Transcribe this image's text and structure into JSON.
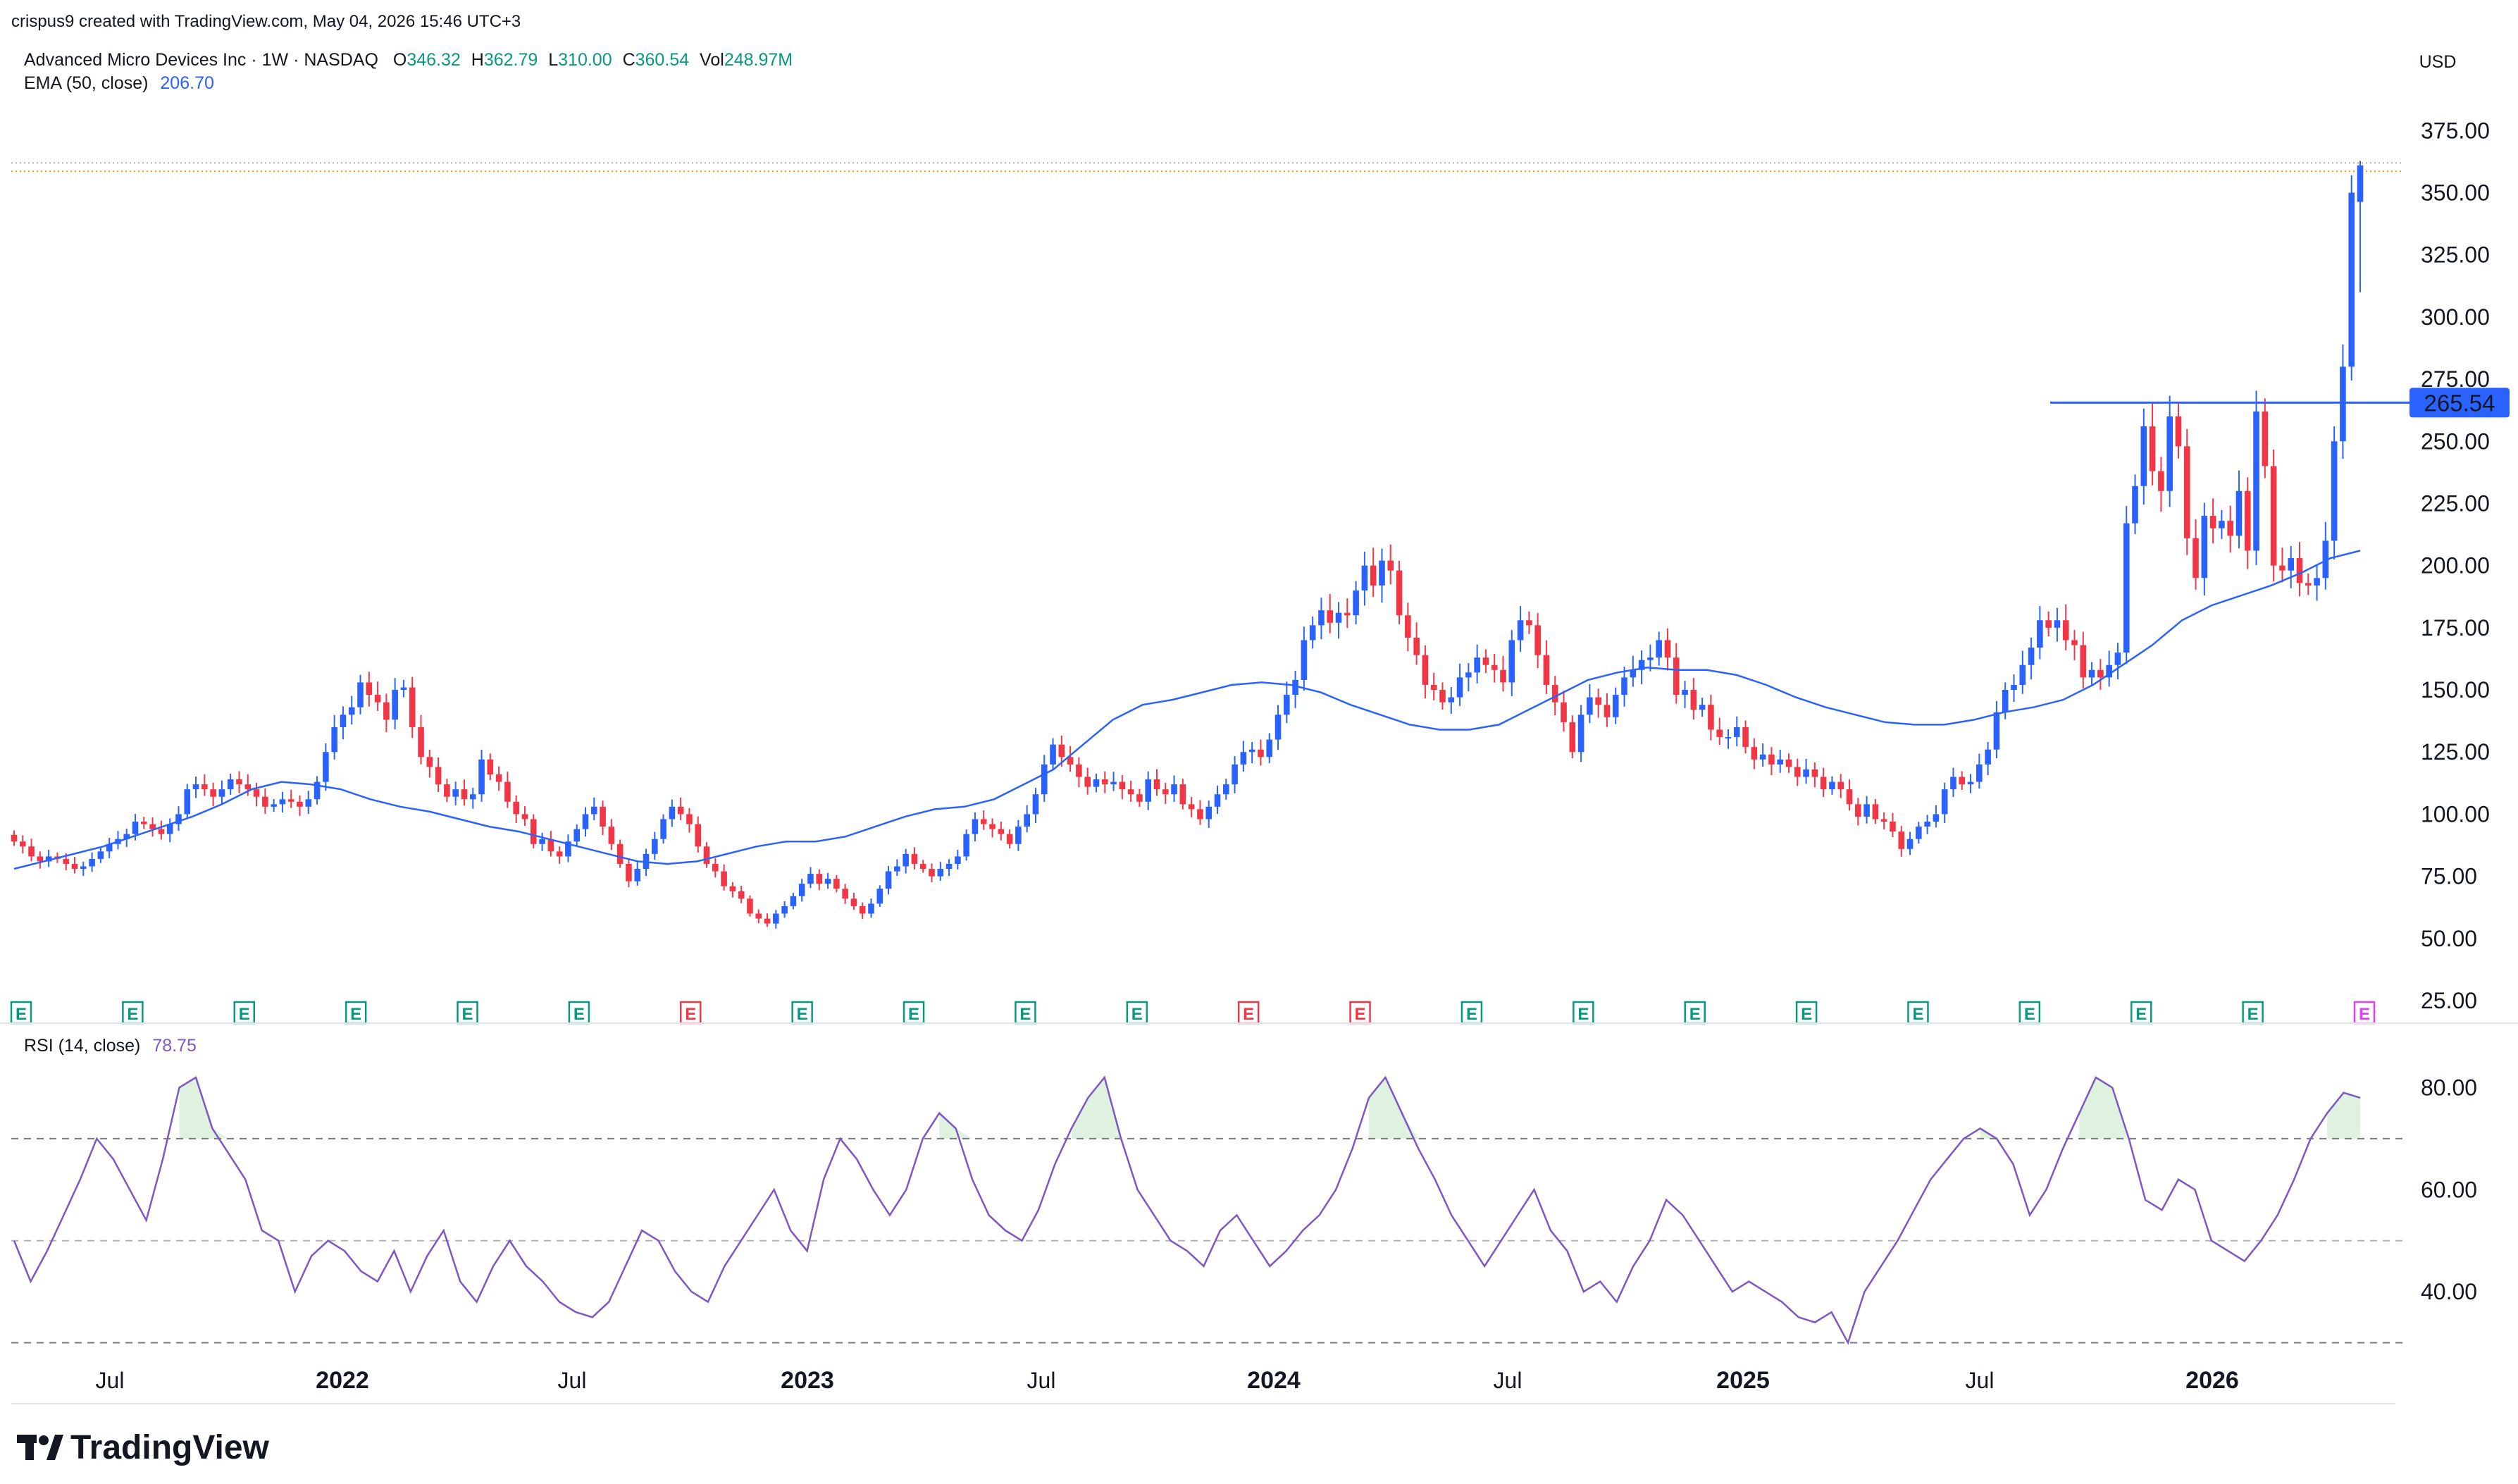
{
  "header": {
    "attribution": "crispus9 created with TradingView.com, May 04, 2026 15:46 UTC+3",
    "currency": "USD"
  },
  "legend": {
    "symbol": "Advanced Micro Devices Inc · 1W · NASDAQ",
    "open_label": "O",
    "open": "346.32",
    "high_label": "H",
    "high": "362.79",
    "low_label": "L",
    "low": "310.00",
    "close_label": "C",
    "close": "360.54",
    "vol_label": "Vol",
    "vol": "248.97M",
    "ema_label": "EMA (50, close)",
    "ema_value": "206.70",
    "rsi_label": "RSI (14, close)",
    "rsi_value": "78.75"
  },
  "price_axis": {
    "ticks": [
      "375.00",
      "350.00",
      "325.00",
      "300.00",
      "275.00",
      "250.00",
      "225.00",
      "200.00",
      "175.00",
      "150.00",
      "125.00",
      "100.00",
      "75.00",
      "50.00",
      "25.00"
    ],
    "marker": "265.54"
  },
  "rsi_axis": {
    "ticks": [
      "80.00",
      "60.00",
      "40.00"
    ]
  },
  "time_axis": {
    "labels": [
      {
        "text": "Jul",
        "bold": false
      },
      {
        "text": "2022",
        "bold": true
      },
      {
        "text": "Jul",
        "bold": false
      },
      {
        "text": "2023",
        "bold": true
      },
      {
        "text": "Jul",
        "bold": false
      },
      {
        "text": "2024",
        "bold": true
      },
      {
        "text": "Jul",
        "bold": false
      },
      {
        "text": "2025",
        "bold": true
      },
      {
        "text": "Jul",
        "bold": false
      },
      {
        "text": "2026",
        "bold": true
      }
    ]
  },
  "earnings_markers": [
    {
      "label": "E",
      "color": "#089981"
    },
    {
      "label": "E",
      "color": "#089981"
    },
    {
      "label": "E",
      "color": "#089981"
    },
    {
      "label": "E",
      "color": "#089981"
    },
    {
      "label": "E",
      "color": "#089981"
    },
    {
      "label": "E",
      "color": "#089981"
    },
    {
      "label": "E",
      "color": "#f23645"
    },
    {
      "label": "E",
      "color": "#089981"
    },
    {
      "label": "E",
      "color": "#089981"
    },
    {
      "label": "E",
      "color": "#089981"
    },
    {
      "label": "E",
      "color": "#089981"
    },
    {
      "label": "E",
      "color": "#f23645"
    },
    {
      "label": "E",
      "color": "#f23645"
    },
    {
      "label": "E",
      "color": "#089981"
    },
    {
      "label": "E",
      "color": "#089981"
    },
    {
      "label": "E",
      "color": "#089981"
    },
    {
      "label": "E",
      "color": "#089981"
    },
    {
      "label": "E",
      "color": "#089981"
    },
    {
      "label": "E",
      "color": "#089981"
    },
    {
      "label": "E",
      "color": "#089981"
    },
    {
      "label": "E",
      "color": "#089981"
    },
    {
      "label": "E",
      "color": "#e040fb"
    }
  ],
  "brand": {
    "name": "TradingView"
  },
  "colors": {
    "up": "#2962ff",
    "down": "#f23645",
    "ema": "#2962ff",
    "rsi": "#7e57c2",
    "resistance": "#2962ff",
    "legend_values": "#089981",
    "ema_value": "#2962ff",
    "rsi_value": "#7e57c2"
  },
  "chart_data": {
    "type": "candlestick",
    "interval": "1W",
    "y_range": [
      25,
      385
    ],
    "rsi_range": [
      28,
      86
    ],
    "rsi_levels": [
      70,
      50,
      30
    ],
    "resistance_level": 265.54,
    "weekly_closes": [
      89,
      87,
      83,
      81,
      83,
      82,
      80,
      78,
      79,
      82,
      85,
      88,
      90,
      92,
      97,
      96,
      94,
      92,
      96,
      100,
      110,
      112,
      110,
      107,
      110,
      114,
      112,
      110,
      107,
      103,
      104,
      106,
      105,
      103,
      106,
      113,
      125,
      135,
      140,
      143,
      153,
      148,
      145,
      138,
      150,
      151,
      135,
      123,
      119,
      112,
      107,
      110,
      106,
      108,
      122,
      116,
      113,
      105,
      100,
      98,
      88,
      90,
      85,
      83,
      89,
      94,
      100,
      103,
      95,
      88,
      80,
      73,
      78,
      84,
      90,
      98,
      103,
      100,
      96,
      87,
      80,
      77,
      71,
      69,
      66,
      60,
      58,
      56,
      60,
      63,
      67,
      72,
      76,
      72,
      74,
      70,
      66,
      63,
      60,
      64,
      70,
      77,
      79,
      84,
      80,
      78,
      75,
      78,
      80,
      83,
      92,
      98,
      96,
      94,
      92,
      88,
      95,
      100,
      108,
      120,
      128,
      123,
      120,
      115,
      111,
      114,
      112,
      113,
      110,
      108,
      105,
      114,
      110,
      108,
      112,
      104,
      102,
      98,
      103,
      108,
      112,
      120,
      125,
      126,
      123,
      130,
      140,
      148,
      154,
      170,
      176,
      182,
      177,
      181,
      180,
      190,
      200,
      192,
      202,
      198,
      180,
      171,
      164,
      152,
      150,
      145,
      147,
      155,
      157,
      163,
      160,
      158,
      153,
      170,
      178,
      176,
      164,
      152,
      145,
      137,
      125,
      140,
      147,
      144,
      139,
      148,
      155,
      158,
      162,
      163,
      170,
      163,
      148,
      150,
      142,
      144,
      134,
      131,
      131,
      135,
      127,
      122,
      124,
      120,
      122,
      119,
      115,
      118,
      115,
      110,
      113,
      110,
      104,
      99,
      104,
      98,
      97,
      93,
      86,
      90,
      95,
      97,
      100,
      110,
      115,
      112,
      113,
      120,
      126,
      141,
      150,
      152,
      160,
      167,
      178,
      175,
      178,
      170,
      168,
      155,
      158,
      155,
      160,
      165,
      217,
      232,
      256,
      238,
      230,
      260,
      248,
      211,
      195,
      220,
      215,
      218,
      212,
      230,
      206,
      262,
      240,
      200,
      198,
      203,
      193,
      192,
      195,
      210,
      250,
      280,
      350,
      361
    ],
    "ema_50": [
      78,
      81,
      84,
      87,
      91,
      95,
      99,
      104,
      110,
      113,
      112,
      110,
      106,
      103,
      101,
      98,
      95,
      93,
      90,
      87,
      84,
      81,
      80,
      81,
      84,
      87,
      89,
      89,
      91,
      95,
      99,
      102,
      103,
      106,
      112,
      118,
      128,
      138,
      144,
      146,
      149,
      152,
      153,
      152,
      149,
      144,
      140,
      136,
      134,
      134,
      136,
      142,
      148,
      154,
      157,
      159,
      158,
      158,
      156,
      152,
      147,
      143,
      140,
      137,
      136,
      136,
      138,
      141,
      143,
      146,
      152,
      160,
      168,
      178,
      184,
      188,
      192,
      197,
      203,
      206
    ],
    "rsi_14": [
      50,
      42,
      48,
      55,
      62,
      70,
      66,
      60,
      54,
      66,
      80,
      82,
      72,
      67,
      62,
      52,
      50,
      40,
      47,
      50,
      48,
      44,
      42,
      48,
      40,
      47,
      52,
      42,
      38,
      45,
      50,
      45,
      42,
      38,
      36,
      35,
      38,
      45,
      52,
      50,
      44,
      40,
      38,
      45,
      50,
      55,
      60,
      52,
      48,
      62,
      70,
      66,
      60,
      55,
      60,
      70,
      75,
      72,
      62,
      55,
      52,
      50,
      56,
      65,
      72,
      78,
      82,
      70,
      60,
      55,
      50,
      48,
      45,
      52,
      55,
      50,
      45,
      48,
      52,
      55,
      60,
      68,
      78,
      82,
      75,
      68,
      62,
      55,
      50,
      45,
      50,
      55,
      60,
      52,
      48,
      40,
      42,
      38,
      45,
      50,
      58,
      55,
      50,
      45,
      40,
      42,
      40,
      38,
      35,
      34,
      36,
      30,
      40,
      45,
      50,
      56,
      62,
      66,
      70,
      72,
      70,
      65,
      55,
      60,
      68,
      75,
      82,
      80,
      70,
      58,
      56,
      62,
      60,
      50,
      48,
      46,
      50,
      55,
      62,
      70,
      75,
      79,
      78
    ]
  }
}
